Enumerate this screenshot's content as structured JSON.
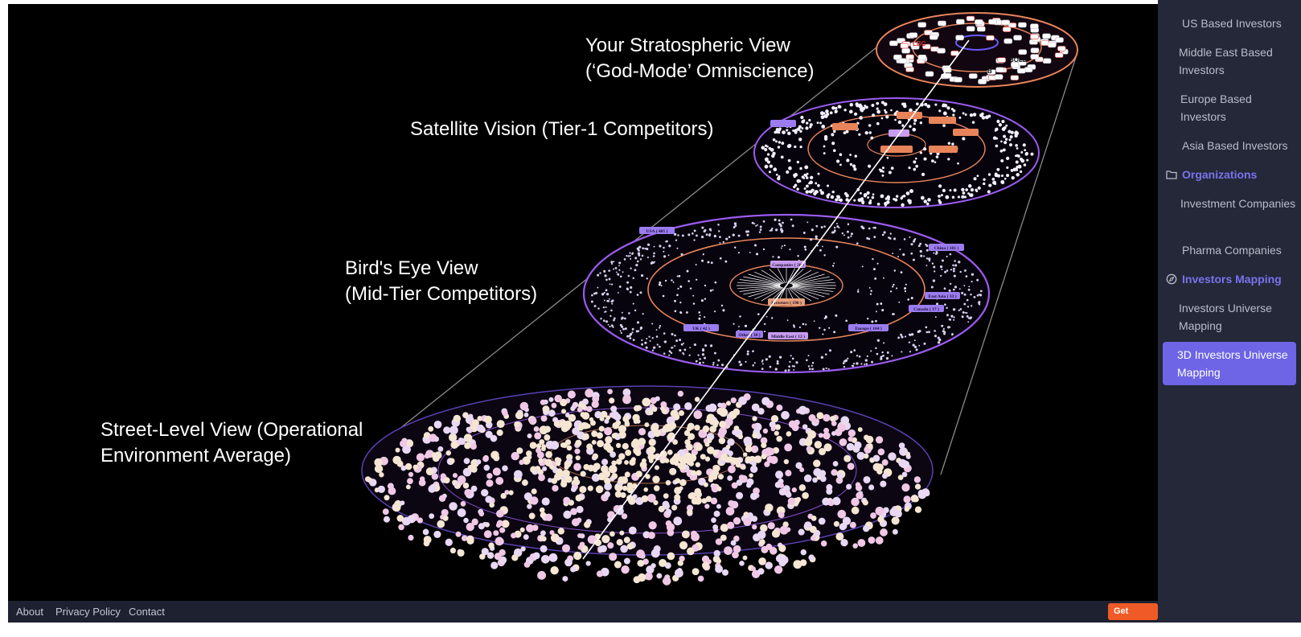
{
  "view_labels": {
    "stratospheric": "Your Stratospheric View\n(‘God-Mode’ Omniscience)",
    "satellite": "Satellite Vision (Tier-1 Competitors)",
    "birds_eye": "Bird's Eye View\n(Mid-Tier Competitors)",
    "street_level": "Street-Level View (Operational\nEnvironment Average)"
  },
  "rings": {
    "satellite_tags": [
      "",
      "",
      "",
      "",
      "",
      "",
      "",
      ""
    ],
    "birds_eye_tags": [
      "USA ( 405 )",
      "China ( 101 )",
      "Companies ( 28 )",
      "Investors ( 190 )",
      "East Asia ( 33 )",
      "Canada ( 17 )",
      "UK ( 42 )",
      "Other ( 38 )",
      "Middle East ( 12 )",
      "Europe ( 104 )"
    ],
    "top_logo_text": [
      "LBC",
      "AV",
      "BOLD",
      "B"
    ]
  },
  "sidebar": {
    "items": [
      {
        "label": "US Based Investors",
        "type": "item"
      },
      {
        "label": "Middle East Based Investors",
        "type": "item"
      },
      {
        "label": "Europe Based Investors",
        "type": "item"
      },
      {
        "label": "Asia Based Investors",
        "type": "item"
      },
      {
        "label": "Organizations",
        "type": "section",
        "icon": "folder-icon"
      },
      {
        "label": "Investment Companies",
        "type": "item"
      },
      {
        "label": "Pharma Companies",
        "type": "item"
      },
      {
        "label": "Investors Mapping",
        "type": "section",
        "icon": "compass-icon"
      },
      {
        "label": "Investors Universe Mapping",
        "type": "item"
      },
      {
        "label": "3D Investors Universe Mapping",
        "type": "item",
        "active": true
      }
    ]
  },
  "footer": {
    "about": "About",
    "privacy": "Privacy Policy",
    "contact": "Contact",
    "get_access": "Get Access"
  },
  "colors": {
    "accent": "#6e64e6",
    "cta": "#f05a26",
    "ring_orange": "#e8845a",
    "ring_purple": "#9b5cf0",
    "node_cream": "#f5e6d3",
    "node_pink": "#f0c8e6"
  }
}
